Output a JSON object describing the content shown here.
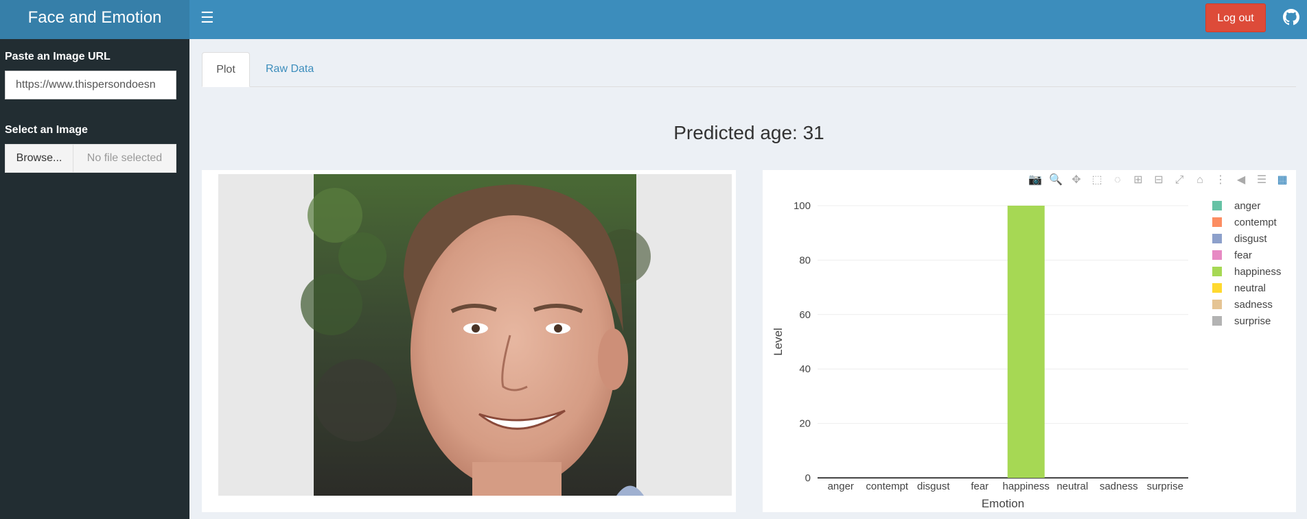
{
  "app": {
    "title": "Face and Emotion",
    "logout_label": "Log out"
  },
  "icons": {
    "menu": "hamburger-icon",
    "github": "github-icon"
  },
  "sidebar": {
    "url_label": "Paste an Image URL",
    "url_value": "https://www.thispersondoesn",
    "select_label": "Select an Image",
    "browse_label": "Browse...",
    "file_status": "No file selected"
  },
  "tabs": [
    {
      "label": "Plot",
      "active": true
    },
    {
      "label": "Raw Data",
      "active": false
    }
  ],
  "main": {
    "age_text": "Predicted age: 31"
  },
  "modebar": [
    "camera-icon",
    "zoom-icon",
    "pan-icon",
    "box-select-icon",
    "lasso-icon",
    "zoom-in-icon",
    "zoom-out-icon",
    "autoscale-icon",
    "reset-axes-icon",
    "spike-lines-icon",
    "hover-closest-icon",
    "hover-compare-icon",
    "plotly-logo-icon"
  ],
  "chart_data": {
    "type": "bar",
    "categories": [
      "anger",
      "contempt",
      "disgust",
      "fear",
      "happiness",
      "neutral",
      "sadness",
      "surprise"
    ],
    "values": [
      0,
      0,
      0,
      0,
      100,
      0,
      0,
      0
    ],
    "colors": [
      "#66c2a5",
      "#fc8d62",
      "#8da0cb",
      "#e78ac3",
      "#a6d854",
      "#ffd92f",
      "#e5c494",
      "#b3b3b3"
    ],
    "xlabel": "Emotion",
    "ylabel": "Level",
    "ylim": [
      0,
      100
    ],
    "yticks": [
      0,
      20,
      40,
      60,
      80,
      100
    ],
    "legend": [
      "anger",
      "contempt",
      "disgust",
      "fear",
      "happiness",
      "neutral",
      "sadness",
      "surprise"
    ],
    "legend_position": "right",
    "grid": true
  }
}
